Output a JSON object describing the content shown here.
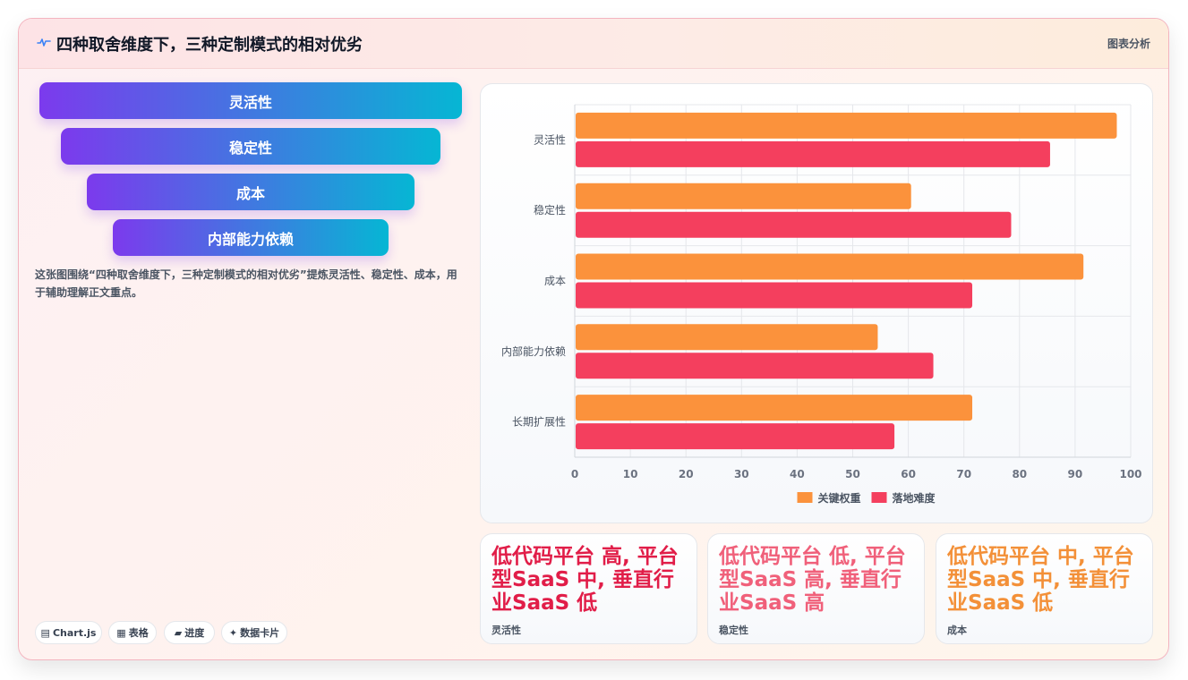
{
  "header": {
    "title": "四种取舍维度下，三种定制模式的相对优劣",
    "tag": "图表分析",
    "icon": "pulse-icon"
  },
  "funnel": {
    "items": [
      "灵活性",
      "稳定性",
      "成本",
      "内部能力依赖"
    ],
    "gradient": [
      "#7c3aed",
      "#06b6d4"
    ]
  },
  "description": "这张图围绕“四种取舍维度下，三种定制模式的相对优劣”提炼灵活性、稳定性、成本，用于辅助理解正文重点。",
  "chips": [
    {
      "icon": "chart-icon",
      "label": "Chart.js"
    },
    {
      "icon": "table-icon",
      "label": "表格"
    },
    {
      "icon": "progress-icon",
      "label": "进度"
    },
    {
      "icon": "sparkle-icon",
      "label": "数据卡片"
    }
  ],
  "chart_data": {
    "type": "bar",
    "orientation": "horizontal",
    "categories": [
      "灵活性",
      "稳定性",
      "成本",
      "内部能力依赖",
      "长期扩展性"
    ],
    "series": [
      {
        "name": "关键权重",
        "color": "#fb923c",
        "values": [
          97.5,
          60.5,
          91.5,
          54.5,
          71.5
        ]
      },
      {
        "name": "落地难度",
        "color": "#f43f5e",
        "values": [
          85.5,
          78.5,
          71.5,
          64.5,
          57.5
        ]
      }
    ],
    "xlim": [
      0,
      100
    ],
    "xticks": [
      0,
      10,
      20,
      30,
      40,
      50,
      60,
      70,
      80,
      90,
      100
    ],
    "grid": true,
    "legend": "bottom"
  },
  "stats": [
    {
      "value": "低代码平台 高, 平台型SaaS 中, 垂直行业SaaS 低",
      "label": "灵活性",
      "color": "#e11d48"
    },
    {
      "value": "低代码平台 低, 平台型SaaS 高, 垂直行业SaaS 高",
      "label": "稳定性",
      "color": "#f0607a"
    },
    {
      "value": "低代码平台 中, 平台型SaaS 中, 垂直行业SaaS 低",
      "label": "成本",
      "color": "#f39038"
    }
  ]
}
